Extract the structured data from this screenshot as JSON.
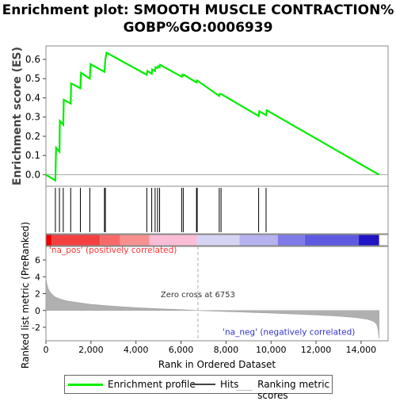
{
  "title_line1": "Enrichment plot: SMOOTH MUSCLE CONTRACTION%",
  "title_line2": "GOBP%GO:0006939",
  "legend": {
    "profile": "Enrichment profile",
    "hits": "Hits",
    "ranking": "Ranking metric scores"
  },
  "colors": {
    "profile": "#00ee00",
    "hits": "#000000",
    "metric": "#b0b0b0",
    "pos_label": "#ff3333",
    "neg_label": "#3333cc"
  },
  "chart_data": [
    {
      "type": "line",
      "name": "enrichment-score",
      "ylabel": "Enrichment score (ES)",
      "xlim": [
        0,
        15200
      ],
      "ylim": [
        -0.06,
        0.67
      ],
      "yticks": [
        0.0,
        0.1,
        0.2,
        0.3,
        0.4,
        0.5,
        0.6
      ],
      "ytick_labels": [
        "0.0",
        "0.1",
        "0.2",
        "0.3",
        "0.4",
        "0.5",
        "0.6"
      ],
      "grid": false,
      "points": [
        [
          0,
          0.0
        ],
        [
          420,
          -0.03
        ],
        [
          450,
          0.14
        ],
        [
          600,
          0.12
        ],
        [
          620,
          0.28
        ],
        [
          770,
          0.26
        ],
        [
          790,
          0.39
        ],
        [
          1100,
          0.37
        ],
        [
          1120,
          0.475
        ],
        [
          1530,
          0.45
        ],
        [
          1560,
          0.53
        ],
        [
          1950,
          0.5
        ],
        [
          1980,
          0.575
        ],
        [
          2600,
          0.535
        ],
        [
          2640,
          0.6
        ],
        [
          2690,
          0.635
        ],
        [
          4480,
          0.52
        ],
        [
          4510,
          0.54
        ],
        [
          4700,
          0.525
        ],
        [
          4720,
          0.548
        ],
        [
          4850,
          0.54
        ],
        [
          4870,
          0.56
        ],
        [
          4960,
          0.555
        ],
        [
          4990,
          0.565
        ],
        [
          5050,
          0.56
        ],
        [
          5070,
          0.572
        ],
        [
          6030,
          0.51
        ],
        [
          6060,
          0.52
        ],
        [
          6100,
          0.515
        ],
        [
          6130,
          0.52
        ],
        [
          6690,
          0.48
        ],
        [
          6720,
          0.49
        ],
        [
          7700,
          0.41
        ],
        [
          7720,
          0.42
        ],
        [
          7780,
          0.42
        ],
        [
          9450,
          0.305
        ],
        [
          9480,
          0.33
        ],
        [
          9780,
          0.31
        ],
        [
          9810,
          0.335
        ],
        [
          14800,
          0.0
        ]
      ]
    },
    {
      "type": "table",
      "name": "hits",
      "x": [
        420,
        600,
        770,
        1100,
        1530,
        1950,
        2600,
        2640,
        4480,
        4700,
        4850,
        4960,
        5050,
        6030,
        6100,
        6690,
        6720,
        7700,
        7780,
        9450,
        9780
      ]
    },
    {
      "type": "area",
      "name": "ranked-list-metric",
      "xlabel": "Rank in Ordered Dataset",
      "ylabel": "Ranked list metric (PreRanked)",
      "xlim": [
        0,
        15200
      ],
      "ylim": [
        -3.6,
        7.6
      ],
      "yticks": [
        -2,
        0,
        2,
        4,
        6
      ],
      "ytick_labels": [
        "-2",
        "0",
        "2",
        "4",
        "6"
      ],
      "xticks": [
        0,
        2000,
        4000,
        6000,
        8000,
        10000,
        12000,
        14000
      ],
      "xtick_labels": [
        "0",
        "2,000",
        "4,000",
        "6,000",
        "8,000",
        "10,000",
        "12,000",
        "14,000"
      ],
      "points": [
        [
          0,
          3.8
        ],
        [
          40,
          3.2
        ],
        [
          100,
          2.6
        ],
        [
          200,
          2.1
        ],
        [
          400,
          1.6
        ],
        [
          700,
          1.3
        ],
        [
          1000,
          1.1
        ],
        [
          1500,
          0.9
        ],
        [
          2000,
          0.72
        ],
        [
          3000,
          0.5
        ],
        [
          4000,
          0.33
        ],
        [
          5000,
          0.2
        ],
        [
          6000,
          0.1
        ],
        [
          6753,
          0.0
        ],
        [
          8000,
          -0.13
        ],
        [
          9000,
          -0.22
        ],
        [
          10000,
          -0.32
        ],
        [
          11000,
          -0.42
        ],
        [
          12000,
          -0.53
        ],
        [
          13000,
          -0.68
        ],
        [
          13800,
          -0.85
        ],
        [
          14300,
          -1.05
        ],
        [
          14600,
          -1.35
        ],
        [
          14700,
          -1.7
        ],
        [
          14760,
          -2.3
        ],
        [
          14800,
          -3.3
        ]
      ],
      "zero_cross": 6753,
      "zero_cross_label": "Zero cross at 6753",
      "pos_label": "'na_pos' (positively correlated)",
      "neg_label": "'na_neg' (negatively correlated)"
    },
    {
      "type": "heatmap",
      "name": "rank-color-bar",
      "segments": [
        {
          "from": 0,
          "to": 250,
          "color": "#ee0000"
        },
        {
          "from": 250,
          "to": 2400,
          "color": "#f54040"
        },
        {
          "from": 2400,
          "to": 3300,
          "color": "#f86a6a"
        },
        {
          "from": 3300,
          "to": 4600,
          "color": "#f99090"
        },
        {
          "from": 4600,
          "to": 6700,
          "color": "#fbbdd6"
        },
        {
          "from": 6700,
          "to": 8600,
          "color": "#d6d4f3"
        },
        {
          "from": 8600,
          "to": 10300,
          "color": "#b5b2ef"
        },
        {
          "from": 10300,
          "to": 11500,
          "color": "#7e7ae8"
        },
        {
          "from": 11500,
          "to": 13900,
          "color": "#5e5ae0"
        },
        {
          "from": 13900,
          "to": 14800,
          "color": "#2214c4"
        }
      ]
    }
  ]
}
